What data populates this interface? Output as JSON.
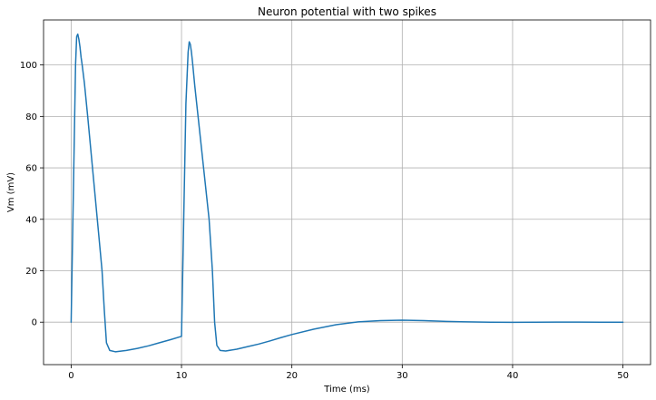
{
  "chart_data": {
    "type": "line",
    "title": "Neuron potential with two spikes",
    "xlabel": "Time (ms)",
    "ylabel": "Vm (mV)",
    "xlim": [
      -2.5,
      52.5
    ],
    "ylim": [
      -16.5,
      117.5
    ],
    "xticks": [
      0,
      10,
      20,
      30,
      40,
      50
    ],
    "yticks": [
      0,
      20,
      40,
      60,
      80,
      100
    ],
    "grid": true,
    "series": [
      {
        "color": "#1f77b4",
        "x": [
          0,
          0.2,
          0.4,
          0.5,
          0.6,
          0.7,
          0.8,
          0.9,
          1.0,
          1.2,
          1.5,
          2.0,
          2.5,
          2.8,
          3.0,
          3.2,
          3.5,
          4.0,
          5.0,
          6.0,
          7.0,
          8.0,
          9.0,
          10.0,
          10.2,
          10.4,
          10.6,
          10.7,
          10.8,
          10.9,
          11.0,
          11.2,
          11.5,
          12.0,
          12.5,
          12.8,
          13.0,
          13.2,
          13.5,
          14.0,
          15.0,
          16.0,
          17.0,
          18.0,
          19.0,
          20.0,
          22.0,
          24.0,
          26.0,
          28.0,
          30.0,
          32.0,
          34.0,
          36.0,
          38.0,
          40.0,
          42.0,
          44.0,
          46.0,
          48.0,
          50.0
        ],
        "y": [
          0,
          50,
          100,
          111,
          112,
          110,
          107,
          103,
          100,
          93,
          80,
          57,
          34,
          20,
          5,
          -8,
          -11,
          -11.5,
          -11,
          -10.2,
          -9.2,
          -8.0,
          -6.8,
          -5.5,
          40,
          85,
          105,
          109,
          108,
          105,
          101,
          92,
          80,
          60,
          40,
          20,
          0,
          -9,
          -11,
          -11.2,
          -10.5,
          -9.5,
          -8.5,
          -7.3,
          -6.0,
          -4.8,
          -2.7,
          -1.0,
          0.1,
          0.6,
          0.8,
          0.6,
          0.3,
          0.1,
          0.0,
          -0.05,
          0.0,
          0.02,
          0.01,
          0.0,
          0.0
        ]
      }
    ]
  }
}
